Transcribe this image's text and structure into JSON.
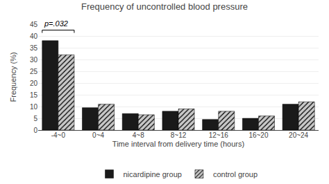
{
  "chart_data": {
    "type": "bar",
    "title": "Frequency of uncontrolled blood pressure",
    "categories": [
      "-4~0",
      "0~4",
      "4~8",
      "8~12",
      "12~16",
      "16~20",
      "20~24"
    ],
    "series": [
      {
        "name": "nicardipine group",
        "color": "#1a1a1a",
        "values": [
          38,
          9.5,
          7,
          8,
          4.5,
          5,
          11
        ]
      },
      {
        "name": "control group",
        "color": "#c8c8c8",
        "values": [
          32,
          11,
          6.5,
          9,
          8,
          6,
          12
        ]
      }
    ],
    "xlabel": "Time interval from delivery time (hours)",
    "ylabel": "Frequency (%)",
    "ylim": [
      0,
      45
    ],
    "yticks": [
      0,
      5,
      10,
      15,
      20,
      25,
      30,
      35,
      40,
      45
    ],
    "grid": true,
    "legend": "bottom",
    "annotations": [
      {
        "text": "p=.032",
        "x": "-4~0",
        "y": 42.5
      }
    ]
  }
}
